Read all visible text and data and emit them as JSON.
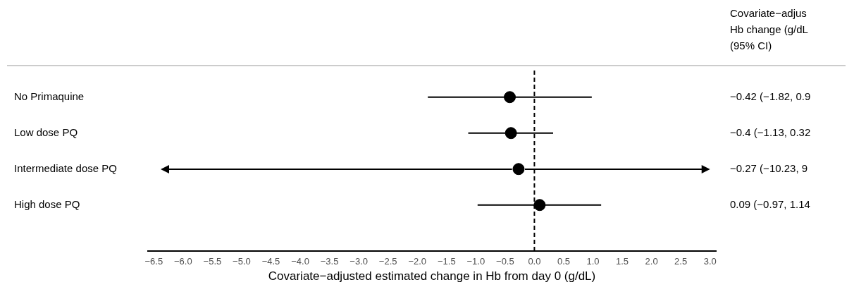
{
  "chart_data": {
    "type": "scatter",
    "xlabel": "Covariate−adjusted estimated change in Hb from day 0 (g/dL)",
    "categories": [
      "No Primaquine",
      "Low dose PQ",
      "Intermediate dose PQ",
      "High dose PQ"
    ],
    "series": [
      {
        "color": "#000000",
        "values": [
          -0.42,
          -0.4,
          -0.27,
          0.09
        ],
        "errors": [
          [
            -1.82,
            0.98
          ],
          [
            -1.13,
            0.32
          ],
          null,
          [
            -0.97,
            1.14
          ]
        ],
        "value_labels": [
          "−0.42 (−1.82, 0.9",
          "−0.4 (−1.13, 0.32",
          "−0.27 (−10.23, 9",
          "0.09 (−0.97, 1.14"
        ]
      }
    ],
    "orientation": "horizontal",
    "marker": "circle",
    "grid": false,
    "legend": false,
    "xlim": [
      -6.6,
      3.1
    ],
    "xticks": [
      {
        "value": -6.5,
        "label": "−6.5"
      },
      {
        "value": -6,
        "label": "−6.0"
      },
      {
        "value": -5.5,
        "label": "−5.5"
      },
      {
        "value": -5,
        "label": "−5.0"
      },
      {
        "value": -4.5,
        "label": "−4.5"
      },
      {
        "value": -4,
        "label": "−4.0"
      },
      {
        "value": -3.5,
        "label": "−3.5"
      },
      {
        "value": -3,
        "label": "−3.0"
      },
      {
        "value": -2.5,
        "label": "−2.5"
      },
      {
        "value": -2,
        "label": "−2.0"
      },
      {
        "value": -1.5,
        "label": "−1.5"
      },
      {
        "value": -1,
        "label": "−1.0"
      },
      {
        "value": -0.5,
        "label": "−0.5"
      },
      {
        "value": 0,
        "label": "0.0"
      },
      {
        "value": 0.5,
        "label": "0.5"
      },
      {
        "value": 1,
        "label": "1.0"
      },
      {
        "value": 1.5,
        "label": "1.5"
      },
      {
        "value": 2,
        "label": "2.0"
      },
      {
        "value": 2.5,
        "label": "2.5"
      },
      {
        "value": 3,
        "label": "3.0"
      }
    ],
    "ref_lines": [
      {
        "axis": "x",
        "value": 0,
        "label": null,
        "line_style": "dashed",
        "color": "#000000"
      }
    ],
    "annotations": [
      "Covariate−adjus",
      "Hb change (g/dL",
      "(95% CI)"
    ]
  }
}
